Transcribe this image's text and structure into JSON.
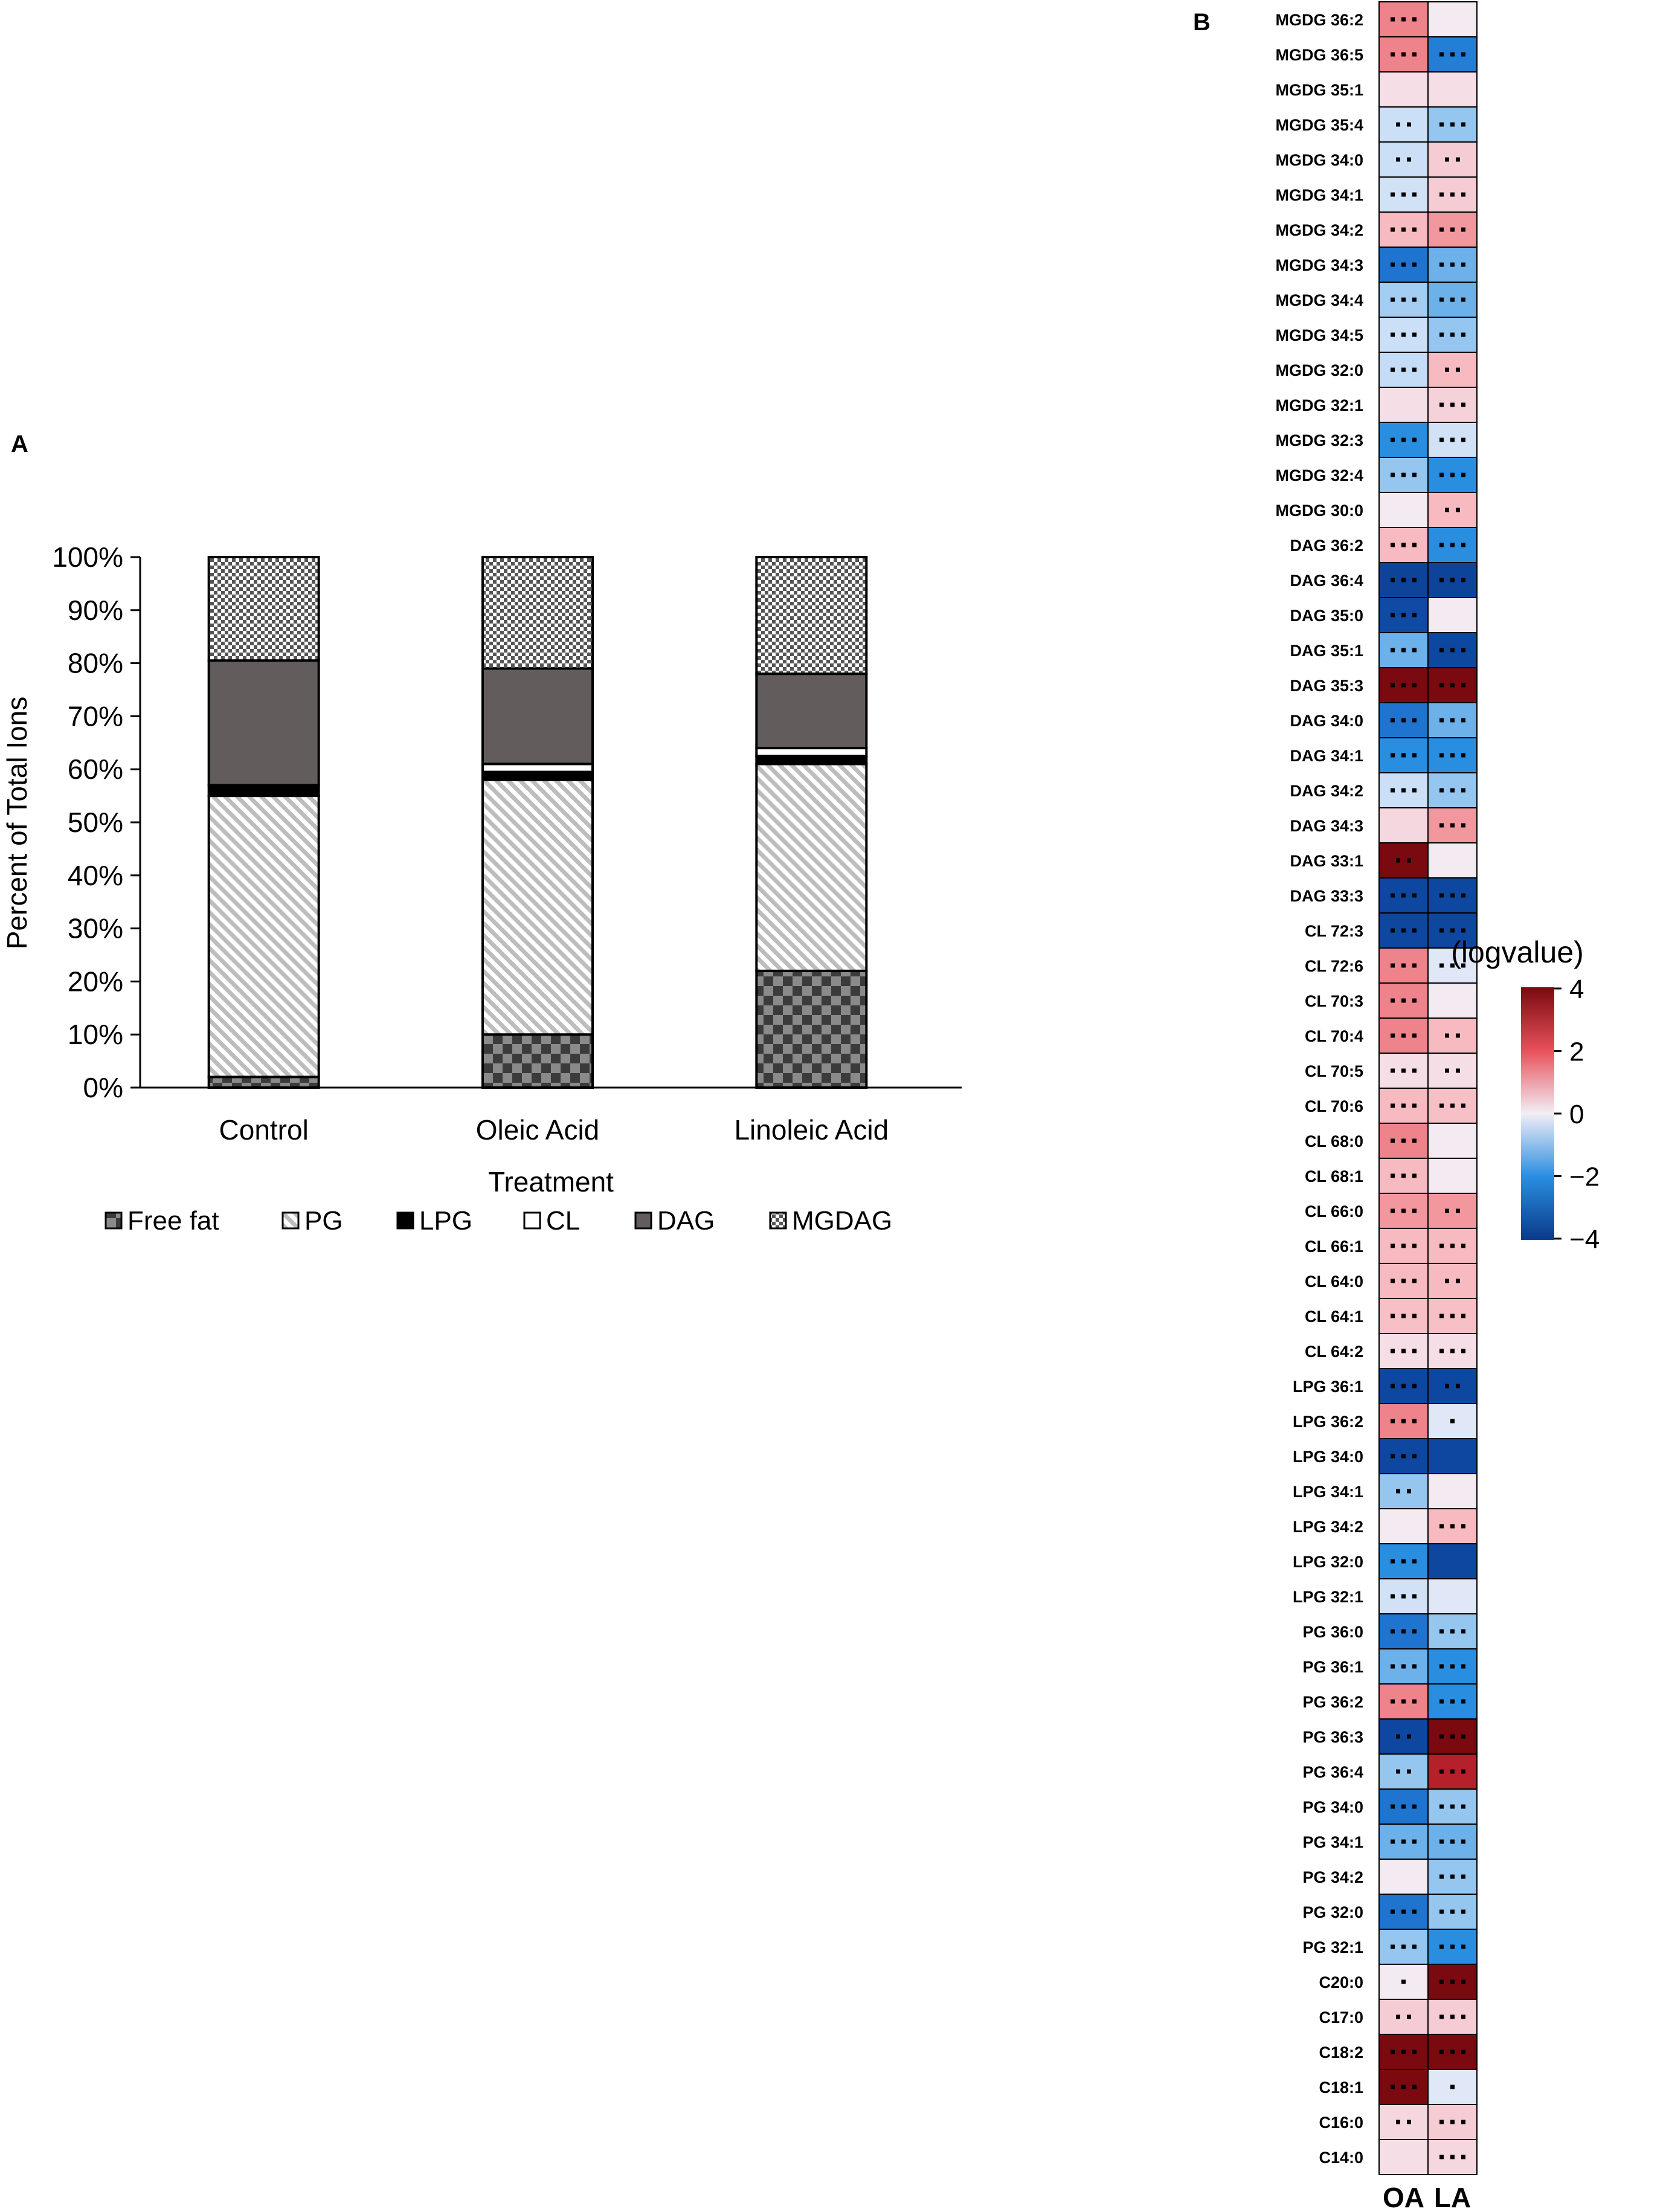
{
  "panel_a": {
    "letter": "A"
  },
  "panel_b": {
    "letter": "B"
  },
  "chart_data": [
    {
      "type": "bar",
      "stacked": true,
      "xlabel": "Treatment",
      "ylabel": "Percent of Total Ions",
      "ylim": [
        0,
        100
      ],
      "yticks": [
        "0%",
        "10%",
        "20%",
        "30%",
        "40%",
        "50%",
        "60%",
        "70%",
        "80%",
        "90%",
        "100%"
      ],
      "categories": [
        "Control",
        "Oleic Acid",
        "Linoleic Acid"
      ],
      "legend_position": "bottom",
      "series": [
        {
          "name": "Free fat",
          "values": [
            2,
            10,
            22
          ]
        },
        {
          "name": "PG",
          "values": [
            53,
            48,
            39
          ]
        },
        {
          "name": "LPG",
          "values": [
            2,
            1.5,
            1.5
          ]
        },
        {
          "name": "CL",
          "values": [
            0,
            1.5,
            1.5
          ]
        },
        {
          "name": "DAG",
          "values": [
            23.5,
            18,
            14
          ]
        },
        {
          "name": "MGDAG",
          "values": [
            19.5,
            21,
            22
          ]
        }
      ]
    },
    {
      "type": "heatmap",
      "columns": [
        "OA",
        "LA"
      ],
      "colorbar": {
        "title": "(logvalue)",
        "range": [
          -4,
          4
        ],
        "ticks": [
          "4",
          "2",
          "0",
          "−2",
          "−4"
        ]
      },
      "rows": [
        {
          "label": "MGDG 36:2",
          "values": [
            1.5,
            0.1
          ],
          "marks": [
            3,
            0
          ]
        },
        {
          "label": "MGDG 36:5",
          "values": [
            1.5,
            -2.3
          ],
          "marks": [
            3,
            3
          ]
        },
        {
          "label": "MGDG 35:1",
          "values": [
            0.3,
            0.3
          ],
          "marks": [
            0,
            0
          ]
        },
        {
          "label": "MGDG 35:4",
          "values": [
            -0.6,
            -1.2
          ],
          "marks": [
            2,
            3
          ]
        },
        {
          "label": "MGDG 34:0",
          "values": [
            -0.6,
            0.6
          ],
          "marks": [
            2,
            2
          ]
        },
        {
          "label": "MGDG 34:1",
          "values": [
            -0.5,
            0.6
          ],
          "marks": [
            3,
            3
          ]
        },
        {
          "label": "MGDG 34:2",
          "values": [
            0.9,
            1.3
          ],
          "marks": [
            3,
            3
          ]
        },
        {
          "label": "MGDG 34:3",
          "values": [
            -2.5,
            -1.5
          ],
          "marks": [
            3,
            3
          ]
        },
        {
          "label": "MGDG 34:4",
          "values": [
            -1.1,
            -1.5
          ],
          "marks": [
            3,
            3
          ]
        },
        {
          "label": "MGDG 34:5",
          "values": [
            -0.6,
            -1.2
          ],
          "marks": [
            3,
            3
          ]
        },
        {
          "label": "MGDG 32:0",
          "values": [
            -0.7,
            0.9
          ],
          "marks": [
            3,
            2
          ]
        },
        {
          "label": "MGDG 32:1",
          "values": [
            0.3,
            0.5
          ],
          "marks": [
            0,
            3
          ]
        },
        {
          "label": "MGDG 32:3",
          "values": [
            -2.0,
            -0.5
          ],
          "marks": [
            3,
            3
          ]
        },
        {
          "label": "MGDG 32:4",
          "values": [
            -1.2,
            -2.0
          ],
          "marks": [
            3,
            3
          ]
        },
        {
          "label": "MGDG 30:0",
          "values": [
            0.1,
            0.9
          ],
          "marks": [
            0,
            2
          ]
        },
        {
          "label": "DAG 36:2",
          "values": [
            0.9,
            -2.0
          ],
          "marks": [
            3,
            3
          ]
        },
        {
          "label": "DAG 36:4",
          "values": [
            -3.7,
            -3.7
          ],
          "marks": [
            3,
            3
          ]
        },
        {
          "label": "DAG 35:0",
          "values": [
            -3.5,
            0.1
          ],
          "marks": [
            3,
            0
          ]
        },
        {
          "label": "DAG 35:1",
          "values": [
            -1.5,
            -3.6
          ],
          "marks": [
            3,
            3
          ]
        },
        {
          "label": "DAG 35:3",
          "values": [
            4,
            4
          ],
          "marks": [
            3,
            3
          ]
        },
        {
          "label": "DAG 34:0",
          "values": [
            -2.5,
            -1.5
          ],
          "marks": [
            3,
            3
          ]
        },
        {
          "label": "DAG 34:1",
          "values": [
            -2.0,
            -2.0
          ],
          "marks": [
            3,
            3
          ]
        },
        {
          "label": "DAG 34:2",
          "values": [
            -0.6,
            -1.2
          ],
          "marks": [
            3,
            3
          ]
        },
        {
          "label": "DAG 34:3",
          "values": [
            0.4,
            1.3
          ],
          "marks": [
            0,
            3
          ]
        },
        {
          "label": "DAG 33:1",
          "values": [
            4,
            0.1
          ],
          "marks": [
            2,
            0
          ]
        },
        {
          "label": "DAG 33:3",
          "values": [
            -3.6,
            -3.6
          ],
          "marks": [
            3,
            3
          ]
        },
        {
          "label": "CL 72:3",
          "values": [
            -3.6,
            -3.6
          ],
          "marks": [
            3,
            3
          ]
        },
        {
          "label": "CL 72:6",
          "values": [
            1.5,
            -0.3
          ],
          "marks": [
            3,
            3
          ]
        },
        {
          "label": "CL 70:3",
          "values": [
            1.5,
            0.1
          ],
          "marks": [
            3,
            0
          ]
        },
        {
          "label": "CL 70:4",
          "values": [
            1.5,
            0.9
          ],
          "marks": [
            3,
            2
          ]
        },
        {
          "label": "CL 70:5",
          "values": [
            0.3,
            0.3
          ],
          "marks": [
            3,
            2
          ]
        },
        {
          "label": "CL 70:6",
          "values": [
            0.9,
            0.8
          ],
          "marks": [
            3,
            3
          ]
        },
        {
          "label": "CL 68:0",
          "values": [
            1.5,
            0.1
          ],
          "marks": [
            3,
            0
          ]
        },
        {
          "label": "CL 68:1",
          "values": [
            0.9,
            0.1
          ],
          "marks": [
            3,
            0
          ]
        },
        {
          "label": "CL 66:0",
          "values": [
            1.3,
            1.3
          ],
          "marks": [
            3,
            2
          ]
        },
        {
          "label": "CL 66:1",
          "values": [
            0.9,
            0.9
          ],
          "marks": [
            3,
            3
          ]
        },
        {
          "label": "CL 64:0",
          "values": [
            0.9,
            0.9
          ],
          "marks": [
            3,
            2
          ]
        },
        {
          "label": "CL 64:1",
          "values": [
            0.8,
            0.8
          ],
          "marks": [
            3,
            3
          ]
        },
        {
          "label": "CL 64:2",
          "values": [
            0.3,
            0.3
          ],
          "marks": [
            3,
            3
          ]
        },
        {
          "label": "LPG 36:1",
          "values": [
            -3.6,
            -3.6
          ],
          "marks": [
            3,
            2
          ]
        },
        {
          "label": "LPG 36:2",
          "values": [
            1.5,
            -0.3
          ],
          "marks": [
            3,
            1
          ]
        },
        {
          "label": "LPG 34:0",
          "values": [
            -3.6,
            -3.6
          ],
          "marks": [
            3,
            0
          ]
        },
        {
          "label": "LPG 34:1",
          "values": [
            -1.2,
            0.1
          ],
          "marks": [
            2,
            0
          ]
        },
        {
          "label": "LPG 34:2",
          "values": [
            0.1,
            0.9
          ],
          "marks": [
            0,
            3
          ]
        },
        {
          "label": "LPG 32:0",
          "values": [
            -2.0,
            -3.6
          ],
          "marks": [
            3,
            0
          ]
        },
        {
          "label": "LPG 32:1",
          "values": [
            -0.5,
            -0.3
          ],
          "marks": [
            3,
            0
          ]
        },
        {
          "label": "PG 36:0",
          "values": [
            -2.5,
            -1.2
          ],
          "marks": [
            3,
            3
          ]
        },
        {
          "label": "PG 36:1",
          "values": [
            -1.5,
            -2.0
          ],
          "marks": [
            3,
            3
          ]
        },
        {
          "label": "PG 36:2",
          "values": [
            1.5,
            -2.0
          ],
          "marks": [
            3,
            3
          ]
        },
        {
          "label": "PG 36:3",
          "values": [
            -3.6,
            4
          ],
          "marks": [
            2,
            3
          ]
        },
        {
          "label": "PG 36:4",
          "values": [
            -1.2,
            2.8
          ],
          "marks": [
            2,
            3
          ]
        },
        {
          "label": "PG 34:0",
          "values": [
            -2.5,
            -1.2
          ],
          "marks": [
            3,
            3
          ]
        },
        {
          "label": "PG 34:1",
          "values": [
            -1.5,
            -1.5
          ],
          "marks": [
            3,
            3
          ]
        },
        {
          "label": "PG 34:2",
          "values": [
            0.1,
            -1.2
          ],
          "marks": [
            0,
            3
          ]
        },
        {
          "label": "PG 32:0",
          "values": [
            -2.5,
            -1.2
          ],
          "marks": [
            3,
            3
          ]
        },
        {
          "label": "PG 32:1",
          "values": [
            -1.2,
            -2.0
          ],
          "marks": [
            3,
            3
          ]
        },
        {
          "label": "C20:0",
          "values": [
            0.1,
            4
          ],
          "marks": [
            1,
            3
          ]
        },
        {
          "label": "C17:0",
          "values": [
            0.6,
            0.6
          ],
          "marks": [
            2,
            3
          ]
        },
        {
          "label": "C18:2",
          "values": [
            4,
            4
          ],
          "marks": [
            3,
            3
          ]
        },
        {
          "label": "C18:1",
          "values": [
            4,
            -0.3
          ],
          "marks": [
            3,
            1
          ]
        },
        {
          "label": "C16:0",
          "values": [
            0.4,
            0.6
          ],
          "marks": [
            2,
            3
          ]
        },
        {
          "label": "C14:0",
          "values": [
            0.3,
            0.4
          ],
          "marks": [
            0,
            3
          ]
        }
      ]
    }
  ]
}
